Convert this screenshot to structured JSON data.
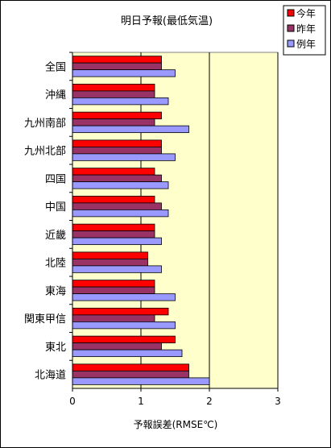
{
  "chart_data": {
    "type": "bar",
    "orientation": "horizontal",
    "title": "明日予報(最低気温)",
    "xlabel": "予報誤差(RMSE℃)",
    "ylabel": "",
    "xlim": [
      0,
      3
    ],
    "xticks": [
      "0",
      "1",
      "2",
      "3"
    ],
    "categories": [
      "全国",
      "沖縄",
      "九州南部",
      "九州北部",
      "四国",
      "中国",
      "近畿",
      "北陸",
      "東海",
      "関東甲信",
      "東北",
      "北海道"
    ],
    "series": [
      {
        "name": "今年",
        "color": "#ff0000",
        "values": [
          1.3,
          1.2,
          1.3,
          1.3,
          1.2,
          1.2,
          1.2,
          1.1,
          1.2,
          1.4,
          1.5,
          1.7
        ]
      },
      {
        "name": "昨年",
        "color": "#993366",
        "values": [
          1.3,
          1.2,
          1.2,
          1.3,
          1.3,
          1.3,
          1.2,
          1.1,
          1.2,
          1.2,
          1.3,
          1.7
        ]
      },
      {
        "name": "例年",
        "color": "#9999ff",
        "values": [
          1.5,
          1.4,
          1.7,
          1.5,
          1.4,
          1.4,
          1.3,
          1.3,
          1.5,
          1.5,
          1.6,
          2.0
        ]
      }
    ],
    "plot_background": "#ffffcc",
    "grid": "vertical major lines",
    "legend": "top-right"
  }
}
